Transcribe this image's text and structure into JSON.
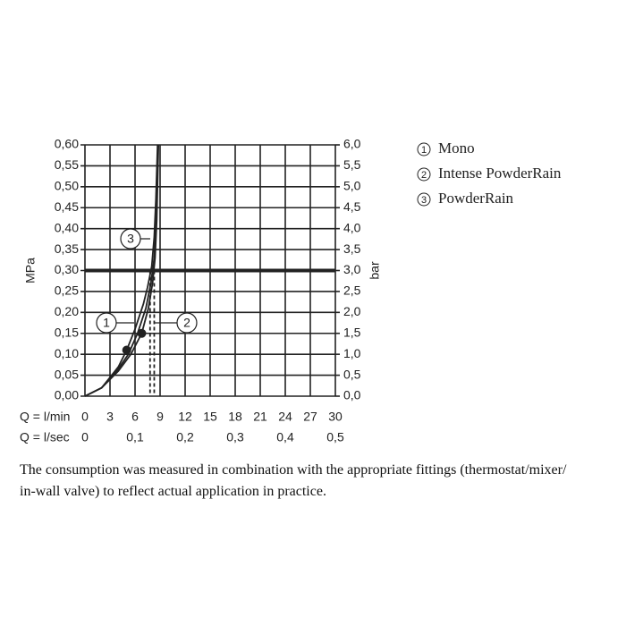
{
  "chart_data": {
    "type": "line",
    "ylabel": "MPa",
    "y2label": "bar",
    "xlabel": "Q = l/min",
    "x2label": "Q = l/sec",
    "xlim": [
      0,
      30
    ],
    "xticks": [
      0,
      3,
      6,
      9,
      12,
      15,
      18,
      21,
      24,
      27,
      30
    ],
    "x2lim": [
      0,
      0.5
    ],
    "x2ticks": [
      0,
      {
        "value": 0.1,
        "label": "0,1"
      },
      {
        "value": 0.2,
        "label": "0,2"
      },
      {
        "value": 0.3,
        "label": "0,3"
      },
      {
        "value": 0.4,
        "label": "0,4"
      },
      {
        "value": 0.5,
        "label": "0,5"
      }
    ],
    "ylim": [
      0,
      0.6
    ],
    "yticks": [
      {
        "value": 0,
        "label": "0,00"
      },
      {
        "value": 0.05,
        "label": "0,05"
      },
      {
        "value": 0.1,
        "label": "0,10"
      },
      {
        "value": 0.15,
        "label": "0,15"
      },
      {
        "value": 0.2,
        "label": "0,20"
      },
      {
        "value": 0.25,
        "label": "0,25"
      },
      {
        "value": 0.3,
        "label": "0,30"
      },
      {
        "value": 0.35,
        "label": "0,35"
      },
      {
        "value": 0.4,
        "label": "0,40"
      },
      {
        "value": 0.45,
        "label": "0,45"
      },
      {
        "value": 0.5,
        "label": "0,50"
      },
      {
        "value": 0.55,
        "label": "0,55"
      },
      {
        "value": 0.6,
        "label": "0,60"
      }
    ],
    "y2lim": [
      0,
      6
    ],
    "y2ticks": [
      {
        "value": 0,
        "label": "0,0"
      },
      {
        "value": 0.5,
        "label": "0,5"
      },
      {
        "value": 1,
        "label": "1,0"
      },
      {
        "value": 1.5,
        "label": "1,5"
      },
      {
        "value": 2,
        "label": "2,0"
      },
      {
        "value": 2.5,
        "label": "2,5"
      },
      {
        "value": 3,
        "label": "3,0"
      },
      {
        "value": 3.5,
        "label": "3,5"
      },
      {
        "value": 4,
        "label": "4,0"
      },
      {
        "value": 4.5,
        "label": "4,5"
      },
      {
        "value": 5,
        "label": "5,0"
      },
      {
        "value": 5.5,
        "label": "5,5"
      },
      {
        "value": 6,
        "label": "6,0"
      }
    ],
    "grid": true,
    "reference_line": 0.3,
    "color": "#222222",
    "series": [
      {
        "name": "Mono",
        "label": "1",
        "x": [
          0,
          2,
          4,
          5,
          6,
          7,
          7.5,
          8,
          8.3,
          8.5,
          8.7
        ],
        "values": [
          0,
          0.02,
          0.07,
          0.11,
          0.16,
          0.22,
          0.26,
          0.31,
          0.38,
          0.47,
          0.6
        ]
      },
      {
        "name": "Intense PowderRain",
        "label": "2",
        "x": [
          0,
          2,
          4,
          5.5,
          6.8,
          7.6,
          8.1,
          8.4,
          8.6,
          8.8
        ],
        "values": [
          0,
          0.02,
          0.06,
          0.1,
          0.15,
          0.21,
          0.27,
          0.33,
          0.42,
          0.6
        ]
      },
      {
        "name": "PowderRain",
        "label": "3",
        "x": [
          0,
          2,
          4,
          5.2,
          6.3,
          7.3,
          7.9,
          8.3,
          8.55,
          8.75
        ],
        "values": [
          0,
          0.02,
          0.065,
          0.1,
          0.15,
          0.21,
          0.27,
          0.33,
          0.43,
          0.6
        ]
      }
    ],
    "markers": [
      {
        "x": 5.0,
        "y": 0.11
      },
      {
        "x": 6.8,
        "y": 0.15
      }
    ],
    "drops": [
      {
        "x": 7.8,
        "y": 0.3
      },
      {
        "x": 8.3,
        "y": 0.3
      }
    ]
  },
  "note_lines": [
    "The consumption was measured in combination with the appropriate fittings (thermostat/mixer/",
    "in-wall valve) to reflect actual application in practice."
  ]
}
